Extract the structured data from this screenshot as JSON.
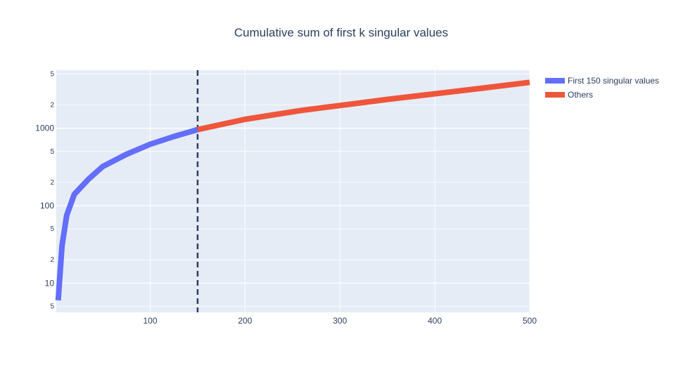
{
  "chart_data": {
    "type": "line",
    "title": "Cumulative sum of first k singular values",
    "xlabel": "",
    "ylabel": "",
    "xlim": [
      1,
      500
    ],
    "y_scale": "log",
    "ylim": [
      4.2,
      5600
    ],
    "x_ticks": [
      "100",
      "200",
      "300",
      "400",
      "500"
    ],
    "y_major_ticks": [
      "10",
      "100",
      "1000"
    ],
    "y_minor_ticks": [
      "5",
      "2",
      "5",
      "2",
      "5",
      "2",
      "5",
      "2",
      "5"
    ],
    "vline": {
      "x": 150,
      "style": "dashed"
    },
    "legend_position": "right",
    "series": [
      {
        "name": "First 150 singular values",
        "color": "#636efa",
        "x": [
          3,
          7,
          12,
          20,
          35,
          50,
          75,
          100,
          125,
          150
        ],
        "y": [
          6,
          30,
          75,
          140,
          220,
          320,
          460,
          620,
          780,
          960
        ]
      },
      {
        "name": "Others",
        "color": "#ef553b",
        "x": [
          150,
          200,
          260,
          300,
          350,
          400,
          450,
          500
        ],
        "y": [
          960,
          1300,
          1700,
          1960,
          2350,
          2780,
          3280,
          3900
        ]
      }
    ]
  }
}
